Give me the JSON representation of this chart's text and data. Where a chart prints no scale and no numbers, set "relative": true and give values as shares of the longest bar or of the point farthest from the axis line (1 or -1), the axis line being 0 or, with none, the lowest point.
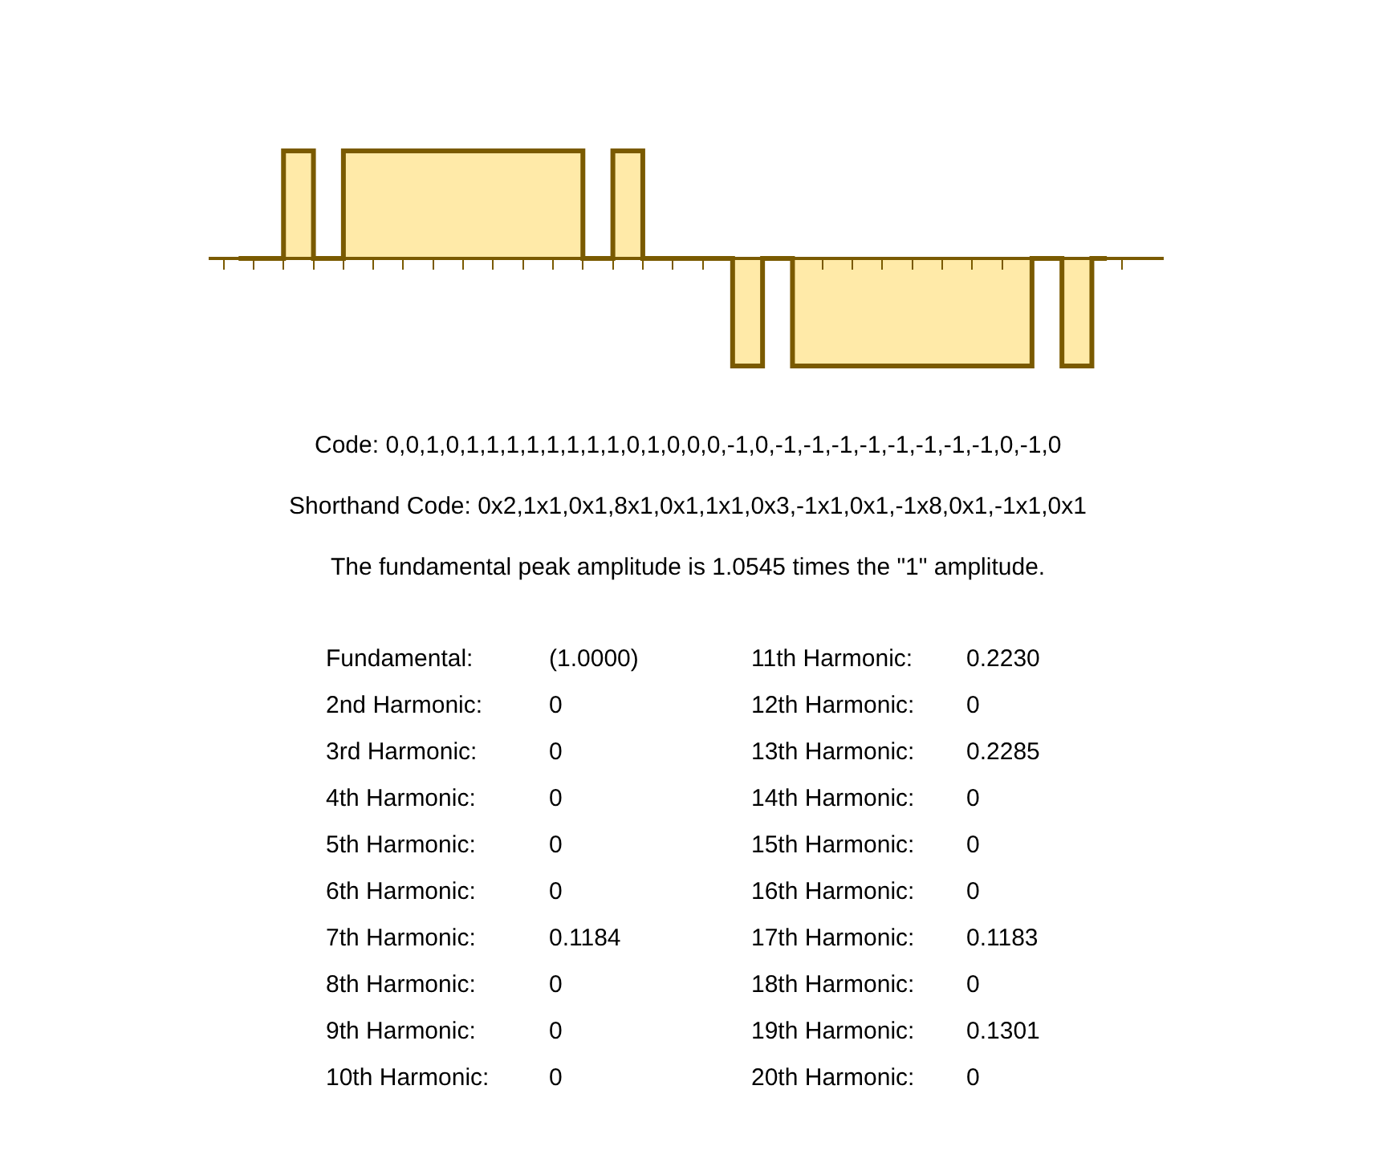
{
  "chart_data": {
    "type": "step",
    "relative": true,
    "categories": [
      null,
      null,
      null,
      null,
      null,
      null,
      null,
      null,
      null,
      null,
      null,
      null,
      null,
      null,
      null,
      null,
      null,
      null,
      null,
      null,
      null,
      null,
      null,
      null,
      null,
      null,
      null,
      null,
      null,
      null
    ],
    "series": [
      {
        "color": "#7a5a00",
        "values": [
          0,
          0,
          1,
          0,
          1,
          1,
          1,
          1,
          1,
          1,
          1,
          1,
          0,
          1,
          0,
          0,
          0,
          -1,
          0,
          -1,
          -1,
          -1,
          -1,
          -1,
          -1,
          -1,
          -1,
          0,
          -1,
          0
        ]
      }
    ],
    "annotations": [
      "Code: 0,0,1,0,1,1,1,1,1,1,1,1,0,1,0,0,0,-1,0,-1,-1,-1,-1,-1,-1,-1,-1,0,-1,0",
      "Shorthand Code: 0x2,1x1,0x1,8x1,0x1,1x1,0x3,-1x1,0x1,-1x8,0x1,-1x1,0x1",
      "The fundamental peak amplitude is 1.0545 times the \"1\" amplitude.",
      "Fundamental:",
      "(1.0000)",
      "2nd Harmonic:",
      "0",
      "3rd Harmonic:",
      "0",
      "4th Harmonic:",
      "0",
      "5th Harmonic:",
      "0",
      "6th Harmonic:",
      "0",
      "7th Harmonic:",
      "0.1184",
      "8th Harmonic:",
      "0",
      "9th Harmonic:",
      "0",
      "10th Harmonic:",
      "0",
      "11th Harmonic:",
      "0.2230",
      "12th Harmonic:",
      "0",
      "13th Harmonic:",
      "0.2285",
      "14th Harmonic:",
      "0",
      "15th Harmonic:",
      "0",
      "16th Harmonic:",
      "0",
      "17th Harmonic:",
      "0.1183",
      "18th Harmonic:",
      "0",
      "19th Harmonic:",
      "0.1301",
      "20th Harmonic:",
      "0"
    ],
    "ref_lines": [
      {
        "axis": "y",
        "value": 0,
        "color": "#7a5a00",
        "line_style": "solid"
      }
    ],
    "marker": "none"
  }
}
